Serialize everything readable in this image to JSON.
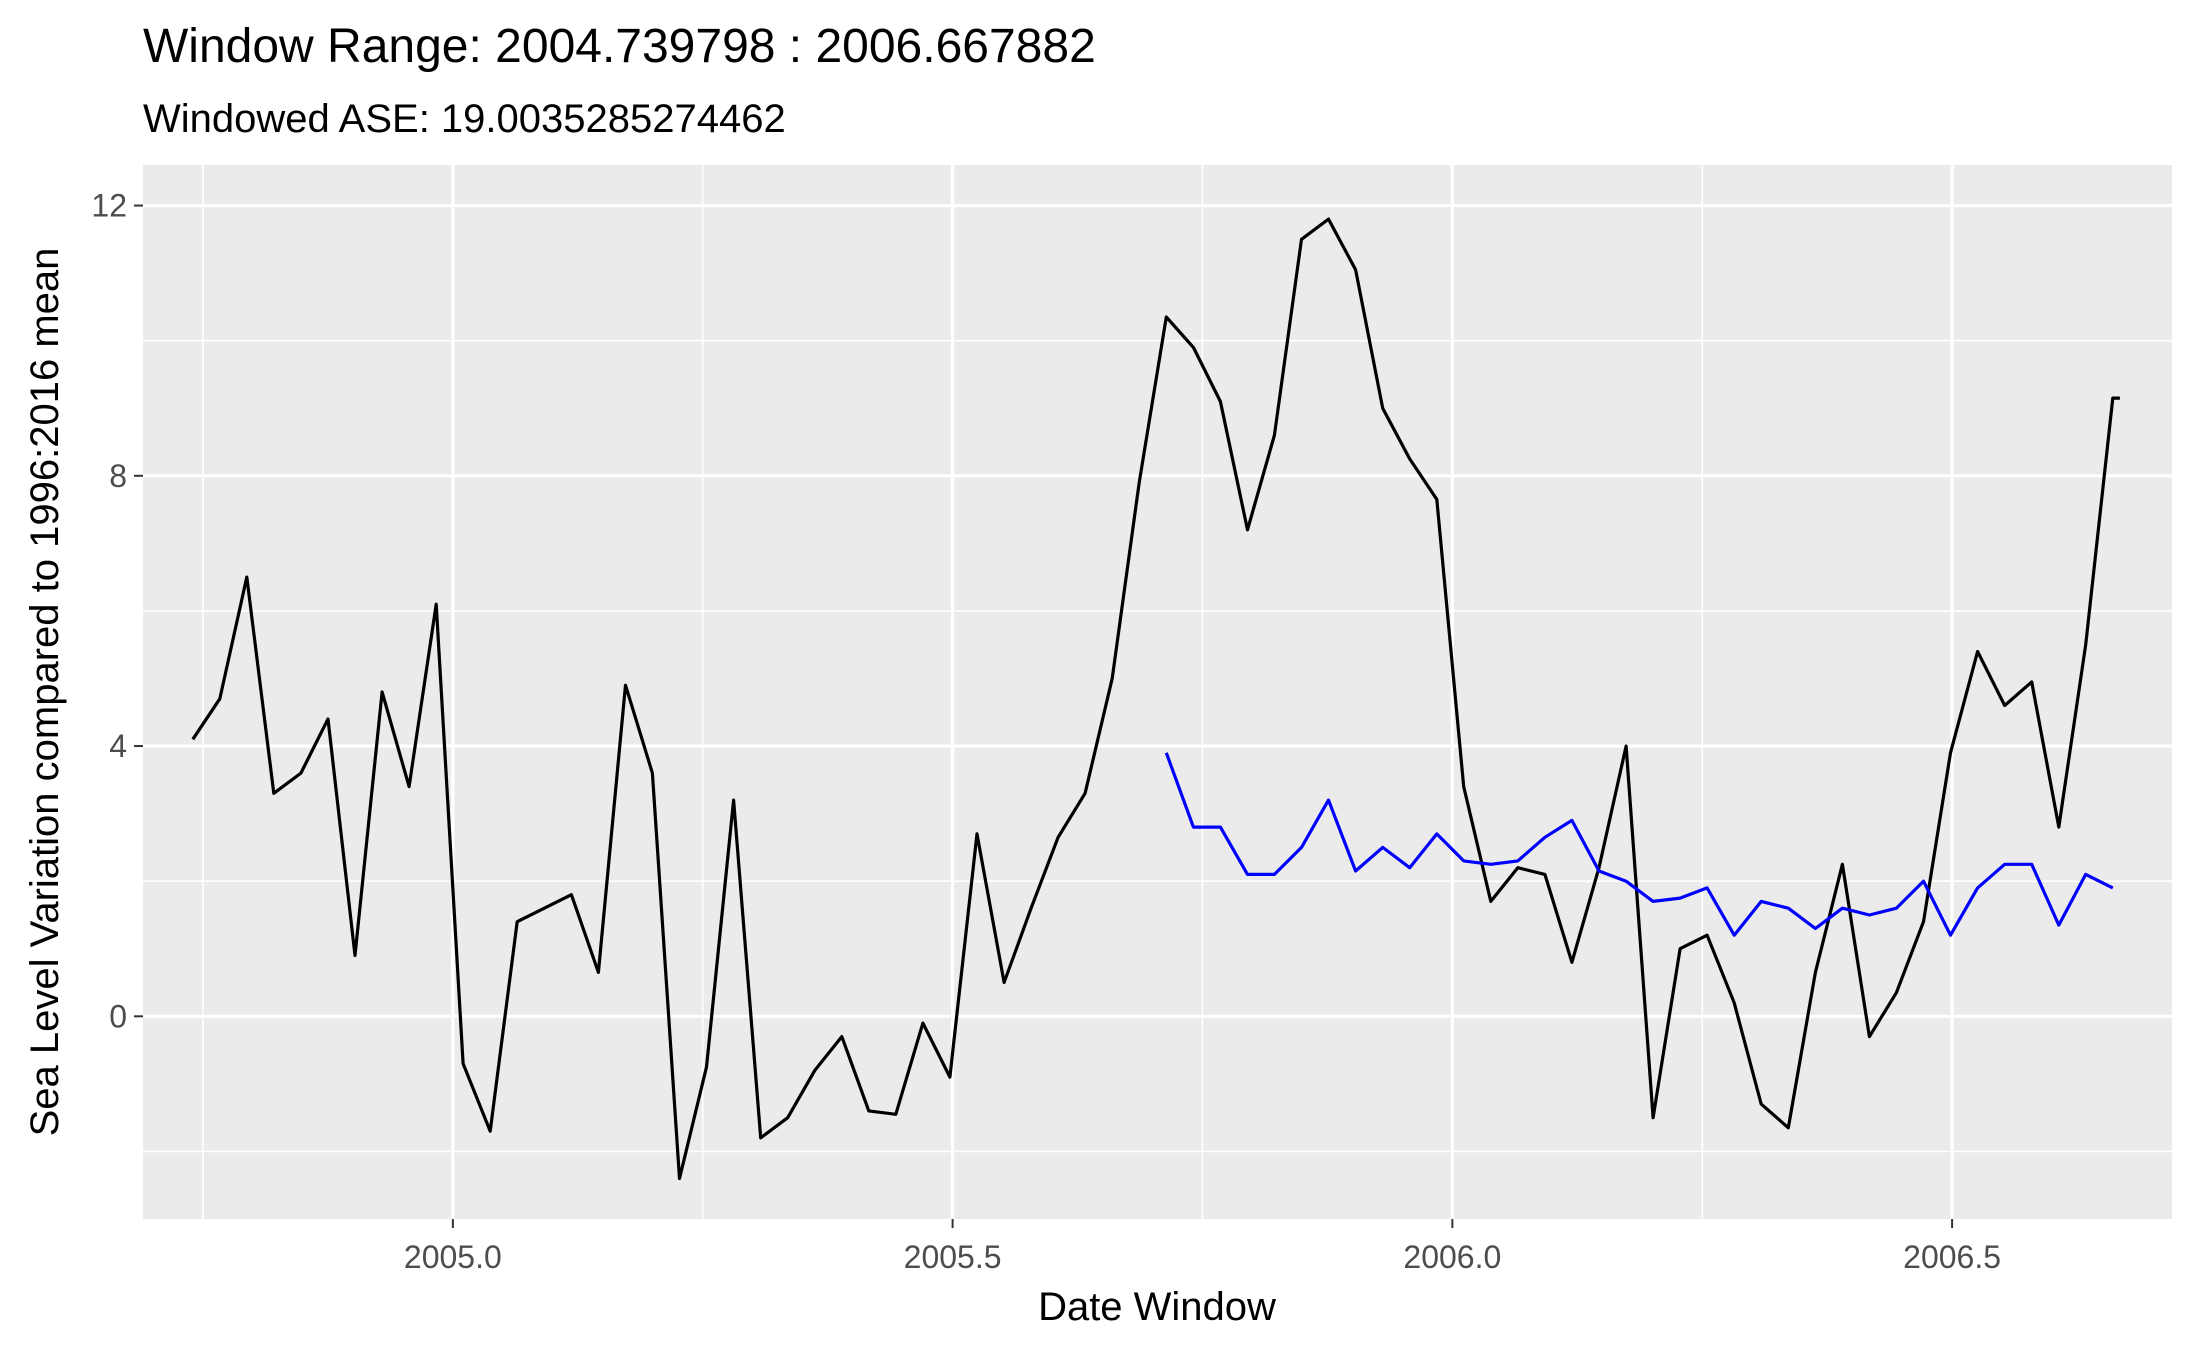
{
  "chart_data": {
    "type": "line",
    "title": "Window Range: 2004.739798 : 2006.667882",
    "subtitle": "Windowed ASE: 19.0035285274462",
    "xlabel": "Date Window",
    "ylabel": "Sea Level Variation compared to 1996:2016 mean",
    "xlim": [
      2004.69,
      2006.72
    ],
    "ylim": [
      -3.0,
      12.6
    ],
    "x_ticks": [
      2005.0,
      2005.5,
      2006.0,
      2006.5
    ],
    "x_tick_labels": [
      "2005.0",
      "2005.5",
      "2006.0",
      "2006.5"
    ],
    "y_ticks": [
      0,
      4,
      8,
      12
    ],
    "y_tick_labels": [
      "0",
      "4",
      "8",
      "12"
    ],
    "grid": true,
    "legend": "none",
    "colors": {
      "observed": "#000000",
      "forecast": "#0000ff",
      "panel": "#ebebeb",
      "grid": "#ffffff"
    },
    "series": [
      {
        "color": "#000000",
        "x": [
          2004.7398,
          2004.7668,
          2004.7939,
          2004.8209,
          2004.848,
          2004.8751,
          2004.9021,
          2004.9292,
          2004.9562,
          2004.9833,
          2005.0103,
          2005.0374,
          2005.0644,
          2005.0915,
          2005.1186,
          2005.1456,
          2005.1727,
          2005.1997,
          2005.2268,
          2005.2538,
          2005.2809,
          2005.308,
          2005.335,
          2005.3621,
          2005.3891,
          2005.4162,
          2005.4432,
          2005.4703,
          2005.4973,
          2005.5244,
          2005.5515,
          2005.5785,
          2005.6056,
          2005.6326,
          2005.6597,
          2005.6867,
          2005.7138,
          2005.7409,
          2005.7679,
          2005.795,
          2005.822,
          2005.8491,
          2005.8761,
          2005.9032,
          2005.9303,
          2005.9573,
          2005.9844,
          2006.0114,
          2006.0385,
          2006.0655,
          2006.0926,
          2006.1196,
          2006.1467,
          2006.1738,
          2006.2008,
          2006.2279,
          2006.2549,
          2006.282,
          2006.309,
          2006.3361,
          2006.3632,
          2006.3902,
          2006.4173,
          2006.4443,
          2006.4714,
          2006.4984,
          2006.5255,
          2006.5526,
          2006.5796,
          2006.6067,
          2006.6337,
          2006.6608,
          2006.6679
        ],
        "y": [
          4.1,
          4.7,
          6.5,
          3.3,
          3.6,
          4.4,
          0.9,
          4.8,
          3.4,
          6.1,
          -0.7,
          -1.7,
          1.4,
          1.6,
          1.8,
          0.65,
          4.9,
          3.6,
          -2.4,
          -0.75,
          3.2,
          -1.8,
          -1.5,
          -0.8,
          -0.3,
          -1.4,
          -1.45,
          -0.1,
          -0.9,
          2.7,
          0.5,
          1.6,
          2.65,
          3.3,
          5.0,
          7.9,
          10.35,
          9.9,
          9.1,
          7.2,
          8.6,
          11.5,
          11.8,
          11.05,
          9.0,
          8.25,
          7.65,
          3.4,
          1.7,
          2.2,
          2.1,
          0.8,
          2.2,
          4.0,
          -1.5,
          1.0,
          1.2,
          0.2,
          -1.3,
          -1.65,
          0.65,
          2.25,
          -0.3,
          0.35,
          1.4,
          3.9,
          5.4,
          4.6,
          4.95,
          2.8,
          5.5,
          9.15,
          9.15
        ]
      },
      {
        "color": "#0000ff",
        "x": [
          2005.7138,
          2005.7409,
          2005.7679,
          2005.795,
          2005.822,
          2005.8491,
          2005.8761,
          2005.9032,
          2005.9303,
          2005.9573,
          2005.9844,
          2006.0114,
          2006.0385,
          2006.0655,
          2006.0926,
          2006.1196,
          2006.1467,
          2006.1738,
          2006.2008,
          2006.2279,
          2006.2549,
          2006.282,
          2006.309,
          2006.3361,
          2006.3632,
          2006.3902,
          2006.4173,
          2006.4443,
          2006.4714,
          2006.4984,
          2006.5255,
          2006.5526,
          2006.5796,
          2006.6067,
          2006.6337,
          2006.6608
        ],
        "y": [
          3.9,
          2.8,
          2.8,
          2.1,
          2.1,
          2.5,
          3.2,
          2.15,
          2.5,
          2.2,
          2.7,
          2.3,
          2.25,
          2.3,
          2.65,
          2.9,
          2.15,
          2.0,
          1.7,
          1.75,
          1.9,
          1.2,
          1.7,
          1.6,
          1.3,
          1.6,
          1.5,
          1.6,
          2.0,
          1.2,
          1.9,
          2.25,
          2.25,
          1.35,
          2.1,
          1.9
        ]
      }
    ]
  }
}
